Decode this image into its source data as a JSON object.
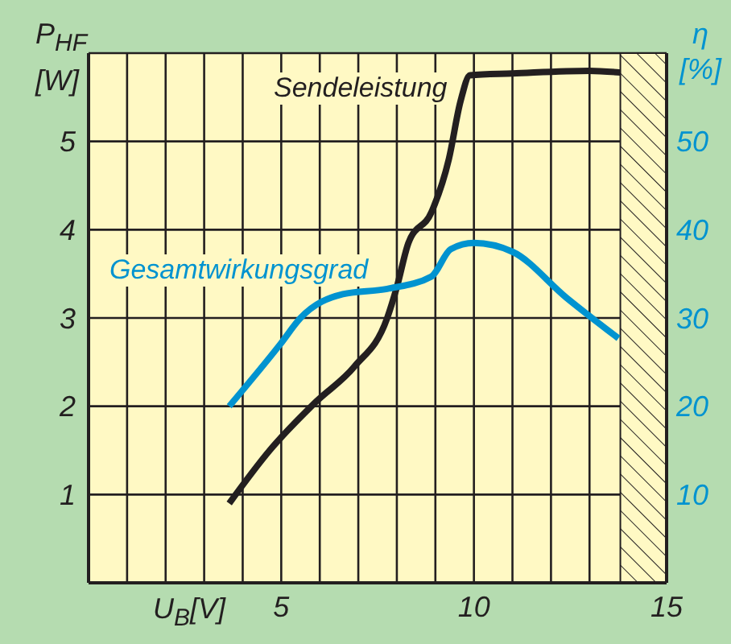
{
  "chart_data": {
    "type": "line",
    "ylabel": "P$_{HF}$ [W]",
    "y2label": "η [%]",
    "xlabel": "U$_{B}$[V]",
    "xlim": [
      0,
      15
    ],
    "xticks": [
      {
        "value": 0,
        "label": null
      },
      {
        "value": 1,
        "label": null
      },
      {
        "value": 2,
        "label": null
      },
      {
        "value": 3,
        "label": null
      },
      {
        "value": 4,
        "label": null
      },
      5,
      {
        "value": 6,
        "label": null
      },
      {
        "value": 7,
        "label": null
      },
      {
        "value": 8,
        "label": null
      },
      {
        "value": 9,
        "label": null
      },
      10,
      {
        "value": 11,
        "label": null
      },
      {
        "value": 12,
        "label": null
      },
      {
        "value": 13,
        "label": null
      },
      15
    ],
    "ylim": [
      0,
      6
    ],
    "yticks": [
      1,
      2,
      3,
      4,
      5
    ],
    "y2lim": [
      0,
      60
    ],
    "y2ticks": [
      10,
      20,
      30,
      40,
      50
    ],
    "grid": true,
    "legend": false,
    "marker": "none",
    "line_style": "solid",
    "series": [
      {
        "name": "Sendeleistung",
        "color": "#231f20",
        "x": [
          3.65,
          4.7,
          5.9,
          6.9,
          7.75,
          8.0,
          8.3,
          8.9,
          9.35,
          9.65,
          9.9,
          11,
          13,
          13.8
        ],
        "values": [
          0.9,
          1.5,
          2.05,
          2.45,
          3.0,
          3.35,
          3.85,
          4.2,
          4.8,
          5.45,
          5.75,
          5.77,
          5.8,
          5.78
        ]
      },
      {
        "name": "Gesamtwirkungsgrad",
        "color": "#0093d0",
        "axis": "y2",
        "x": [
          3.65,
          4.97,
          5.5,
          6.6,
          7.75,
          8.9,
          9.4,
          10,
          11,
          12.4,
          13.75
        ],
        "values": [
          20,
          27,
          30,
          32.7,
          33.3,
          34.7,
          37.8,
          38.5,
          37.5,
          32.3,
          27.7
        ]
      }
    ],
    "bands": [
      {
        "axis": "x",
        "from": 13.8,
        "to": 15,
        "color": "#231f20"
      }
    ]
  }
}
